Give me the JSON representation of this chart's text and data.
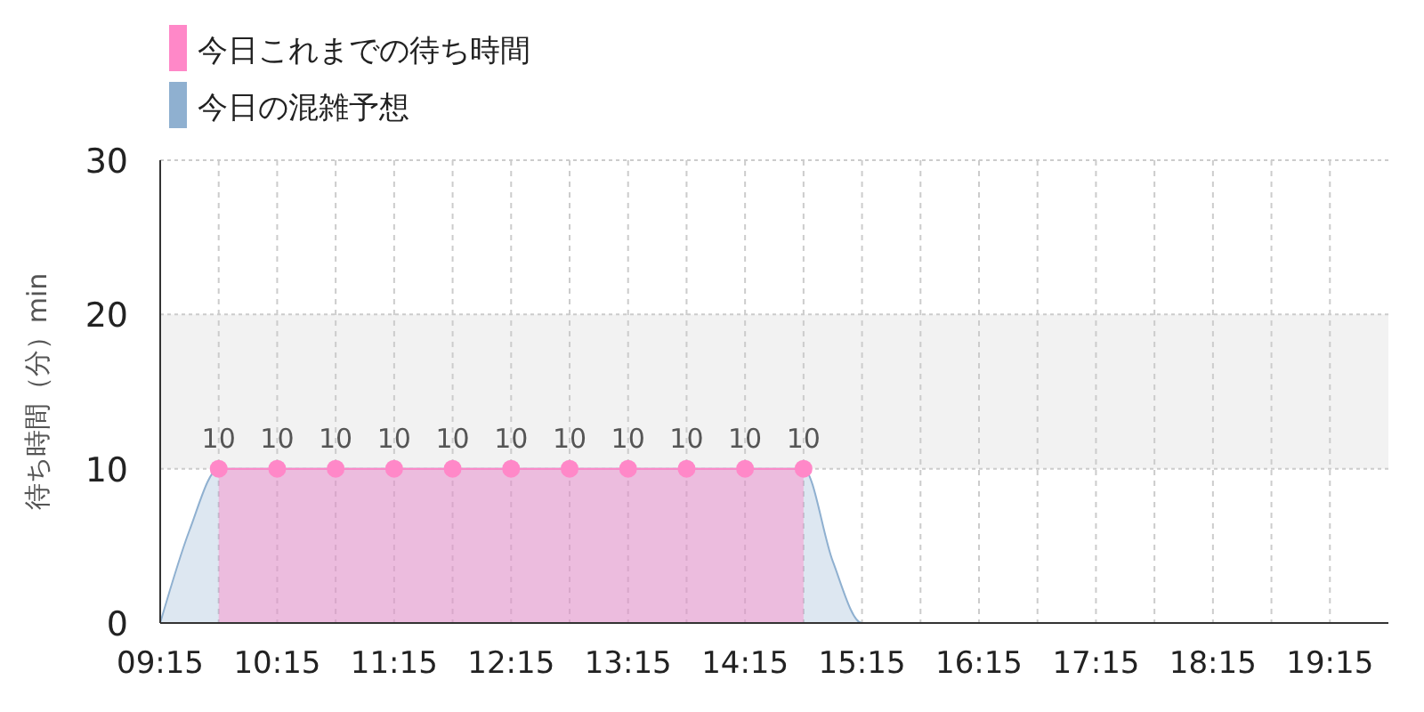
{
  "chart_data": {
    "type": "area",
    "ylabel": "待ち時間（分）min",
    "xlim": [
      9.25,
      19.75
    ],
    "xticks": [
      {
        "value": 9.25,
        "label": "09:15"
      },
      {
        "value": 9.75,
        "label": null
      },
      {
        "value": 10.25,
        "label": "10:15"
      },
      {
        "value": 10.75,
        "label": null
      },
      {
        "value": 11.25,
        "label": "11:15"
      },
      {
        "value": 11.75,
        "label": null
      },
      {
        "value": 12.25,
        "label": "12:15"
      },
      {
        "value": 12.75,
        "label": null
      },
      {
        "value": 13.25,
        "label": "13:15"
      },
      {
        "value": 13.75,
        "label": null
      },
      {
        "value": 14.25,
        "label": "14:15"
      },
      {
        "value": 14.75,
        "label": null
      },
      {
        "value": 15.25,
        "label": "15:15"
      },
      {
        "value": 15.75,
        "label": null
      },
      {
        "value": 16.25,
        "label": "16:15"
      },
      {
        "value": 16.75,
        "label": null
      },
      {
        "value": 17.25,
        "label": "17:15"
      },
      {
        "value": 17.75,
        "label": null
      },
      {
        "value": 18.25,
        "label": "18:15"
      },
      {
        "value": 18.75,
        "label": null
      },
      {
        "value": 19.25,
        "label": "19:15"
      }
    ],
    "ylim": [
      0,
      30
    ],
    "yticks": [
      0,
      10,
      20,
      30
    ],
    "grid": true,
    "legend": "top left",
    "bands": [
      {
        "axis": "y",
        "from": 10,
        "to": 20,
        "color": "#f2f2f2"
      }
    ],
    "series": [
      {
        "name": "今日の混雑予想",
        "color": "#8fb0d0",
        "x": [
          9.25,
          9.5,
          9.75,
          10,
          10.5,
          11,
          11.5,
          12,
          12.5,
          13,
          13.5,
          14,
          14.5,
          14.75,
          15,
          15.25,
          15.5,
          16,
          16.5,
          17,
          17.5,
          18,
          18.5,
          19,
          19.5,
          19.75
        ],
        "values": [
          0,
          6,
          10,
          10,
          10,
          10,
          10,
          10,
          10,
          10,
          10,
          10,
          10,
          10,
          4,
          0,
          0,
          0,
          0,
          0,
          0,
          0,
          0,
          0,
          0,
          0
        ]
      },
      {
        "name": "今日これまでの待ち時間",
        "color": "#ff88c8",
        "marker": "circle",
        "x": [
          9.75,
          10.25,
          10.75,
          11.25,
          11.75,
          12.25,
          12.75,
          13.25,
          13.75,
          14.25,
          14.75
        ],
        "values": [
          10,
          10,
          10,
          10,
          10,
          10,
          10,
          10,
          10,
          10,
          10
        ],
        "value_labels": [
          "10",
          "10",
          "10",
          "10",
          "10",
          "10",
          "10",
          "10",
          "10",
          "10",
          "10"
        ]
      }
    ]
  }
}
